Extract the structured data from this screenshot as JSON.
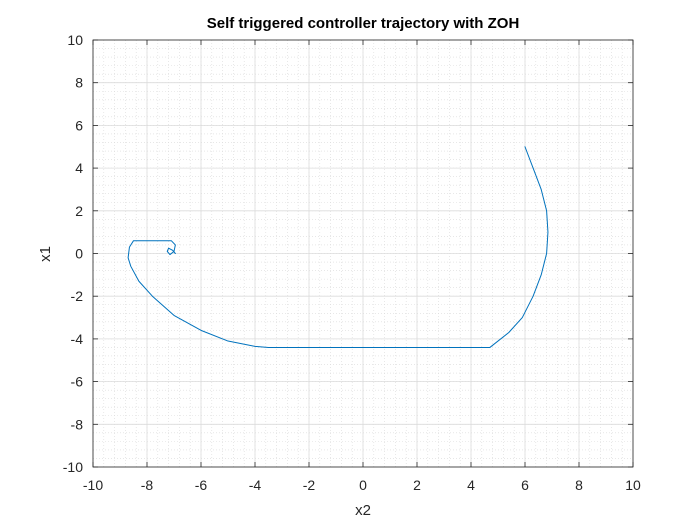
{
  "chart_data": {
    "type": "line",
    "title": "Self triggered controller trajectory with ZOH",
    "xlabel": "x2",
    "ylabel": "x1",
    "xlim": [
      -10,
      10
    ],
    "ylim": [
      -10,
      10
    ],
    "xticks": [
      -10,
      -8,
      -6,
      -4,
      -2,
      0,
      2,
      4,
      6,
      8,
      10
    ],
    "yticks": [
      -10,
      -8,
      -6,
      -4,
      -2,
      0,
      2,
      4,
      6,
      8,
      10
    ],
    "grid": true,
    "minor_grid": true,
    "series": [
      {
        "color": "#0072bd",
        "x": [
          6.0,
          6.3,
          6.6,
          6.8,
          6.85,
          6.8,
          6.6,
          6.3,
          5.9,
          5.4,
          4.7,
          3.5,
          2.0,
          0.0,
          -2.0,
          -3.5,
          -4.0,
          -5.0,
          -6.0,
          -7.0,
          -7.8,
          -8.3,
          -8.6,
          -8.7,
          -8.65,
          -8.5,
          -8.0,
          -7.5,
          -7.1,
          -6.95,
          -7.0,
          -7.15,
          -7.25,
          -7.2,
          -7.05,
          -6.95
        ],
        "y": [
          5.0,
          4.0,
          3.0,
          2.0,
          1.0,
          0.0,
          -1.0,
          -2.0,
          -3.0,
          -3.7,
          -4.4,
          -4.4,
          -4.4,
          -4.4,
          -4.4,
          -4.4,
          -4.35,
          -4.1,
          -3.6,
          -2.9,
          -2.0,
          -1.3,
          -0.6,
          -0.2,
          0.3,
          0.6,
          0.6,
          0.6,
          0.6,
          0.4,
          0.1,
          -0.05,
          0.1,
          0.25,
          0.15,
          0.0
        ]
      }
    ]
  }
}
